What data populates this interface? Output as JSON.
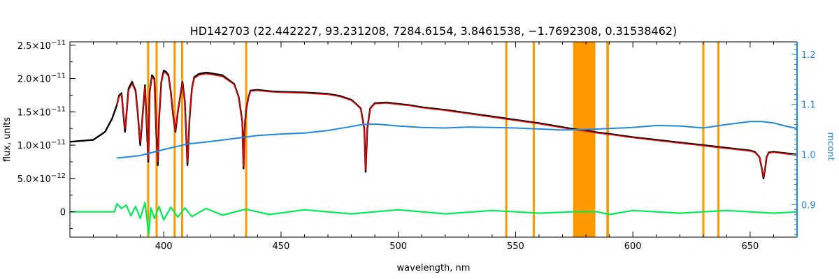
{
  "chart_data": {
    "type": "line",
    "title": "HD142703    (22.442227, 93.231208, 7284.6154, 3.8461538, −1.7692308, 0.31538462)",
    "xlabel": "wavelength, nm",
    "ylabel": "flux, units",
    "y2label": "mcont",
    "xlim": [
      360,
      670
    ],
    "ylim": [
      -3.8e-12,
      2.55e-11
    ],
    "y2lim": [
      0.835,
      1.225
    ],
    "grid": false,
    "x_ticks": [
      {
        "v": 400,
        "label": "400"
      },
      {
        "v": 450,
        "label": "450"
      },
      {
        "v": 500,
        "label": "500"
      },
      {
        "v": 550,
        "label": "550"
      },
      {
        "v": 600,
        "label": "600"
      },
      {
        "v": 650,
        "label": "650"
      }
    ],
    "y_ticks": [
      {
        "v": 0,
        "mant": "0",
        "exp": ""
      },
      {
        "v": 5e-12,
        "mant": "5.0×10",
        "exp": "−12"
      },
      {
        "v": 1e-11,
        "mant": "1.0×10",
        "exp": "−11"
      },
      {
        "v": 1.5e-11,
        "mant": "1.5×10",
        "exp": "−11"
      },
      {
        "v": 2e-11,
        "mant": "2.0×10",
        "exp": "−11"
      },
      {
        "v": 2.5e-11,
        "mant": "2.5×10",
        "exp": "−11"
      }
    ],
    "y2_ticks": [
      {
        "v": 0.9,
        "label": "0.9"
      },
      {
        "v": 1.0,
        "label": "1.0"
      },
      {
        "v": 1.1,
        "label": "1.1"
      },
      {
        "v": 1.2,
        "label": "1.2"
      }
    ],
    "masked_regions": [
      [
        392.9,
        393.8
      ],
      [
        396.5,
        397.3
      ],
      [
        404.2,
        405.0
      ],
      [
        407.4,
        408.2
      ],
      [
        434.7,
        435.5
      ],
      [
        545.6,
        546.5
      ],
      [
        557.3,
        558.2
      ],
      [
        574.5,
        584.0
      ],
      [
        588.7,
        589.8
      ],
      [
        629.6,
        630.5
      ],
      [
        636.0,
        636.9
      ]
    ],
    "colors": {
      "observed": "#000000",
      "model": "#ff0000",
      "mcont": "#1e88e5",
      "residuals": "#00ee55",
      "mask": "#ff9900"
    },
    "series": [
      {
        "role": "observed",
        "x": [
          360,
          370,
          375,
          378,
          380,
          381,
          382,
          383.5,
          385,
          386.5,
          388,
          389,
          390,
          391,
          392,
          393.4,
          394,
          395,
          396,
          396.8,
          397.5,
          398,
          399,
          400,
          401,
          402,
          403,
          404,
          405,
          406,
          408,
          409,
          410.1,
          411,
          412,
          413,
          415,
          418,
          420,
          425,
          430,
          432,
          433.5,
          434.0,
          434.4,
          435,
          436,
          437,
          440,
          445,
          450,
          460,
          470,
          475,
          480,
          482,
          484,
          485.5,
          486.1,
          486.8,
          488,
          490,
          495,
          500,
          505,
          510,
          520,
          530,
          540,
          550,
          560,
          570,
          575,
          580,
          585,
          590,
          600,
          610,
          620,
          630,
          640,
          650,
          652,
          654,
          655,
          655.7,
          656.4,
          657,
          658,
          660,
          665,
          670
        ],
        "y": [
          1.05e-11,
          1.08e-11,
          1.2e-11,
          1.4e-11,
          1.6e-11,
          1.75e-11,
          1.78e-11,
          1.2e-11,
          1.85e-11,
          1.95e-11,
          1.82e-11,
          1.45e-11,
          1e-11,
          1.45e-11,
          1.9e-11,
          7.5e-12,
          1.8e-11,
          2.05e-11,
          2e-11,
          1.2e-11,
          7e-12,
          1.4e-11,
          1.95e-11,
          2.12e-11,
          2.1e-11,
          2.05e-11,
          1.8e-11,
          1.45e-11,
          1.2e-11,
          1.5e-11,
          1.95e-11,
          1.65e-11,
          7e-12,
          1.4e-11,
          1.85e-11,
          2.02e-11,
          2.07e-11,
          2.09e-11,
          2.08e-11,
          2.05e-11,
          1.92e-11,
          1.72e-11,
          1.35e-11,
          6.5e-12,
          1.2e-11,
          1.5e-11,
          1.7e-11,
          1.82e-11,
          1.83e-11,
          1.81e-11,
          1.8e-11,
          1.79e-11,
          1.77e-11,
          1.74e-11,
          1.68e-11,
          1.62e-11,
          1.55e-11,
          1.25e-11,
          6e-12,
          1.25e-11,
          1.55e-11,
          1.63e-11,
          1.64e-11,
          1.62e-11,
          1.6e-11,
          1.57e-11,
          1.53e-11,
          1.48e-11,
          1.43e-11,
          1.38e-11,
          1.33e-11,
          1.27e-11,
          1.24e-11,
          1.22e-11,
          1.19e-11,
          1.17e-11,
          1.12e-11,
          1.08e-11,
          1.04e-11,
          1e-11,
          9.6e-12,
          9.2e-12,
          9e-12,
          8.2e-12,
          6.5e-12,
          5e-12,
          6.5e-12,
          8.2e-12,
          8.9e-12,
          9e-12,
          8.8e-12,
          8.6e-12
        ]
      },
      {
        "role": "model",
        "x": [
          380,
          381,
          382,
          383.5,
          385,
          386.5,
          388,
          389,
          390,
          391,
          392,
          393.4,
          394,
          395,
          396,
          396.8,
          397.5,
          398,
          399,
          400,
          401,
          402,
          403,
          404,
          405,
          406,
          408,
          409,
          410.1,
          411,
          412,
          413,
          415,
          418,
          420,
          425,
          430,
          432,
          433.5,
          434.0,
          434.4,
          435,
          436,
          437,
          440,
          445,
          450,
          460,
          470,
          475,
          480,
          482,
          484,
          485.5,
          486.1,
          486.8,
          488,
          490,
          495,
          500,
          505,
          510,
          520,
          530,
          540,
          550,
          560,
          570,
          575,
          580,
          585,
          590,
          600,
          610,
          620,
          630,
          640,
          650,
          652,
          654,
          655,
          655.7,
          656.4,
          657,
          658,
          660,
          665,
          670
        ],
        "y": [
          1.6e-11,
          1.73e-11,
          1.76e-11,
          1.25e-11,
          1.82e-11,
          1.92e-11,
          1.8e-11,
          1.45e-11,
          1.05e-11,
          1.45e-11,
          1.88e-11,
          7.8e-12,
          1.8e-11,
          2.02e-11,
          1.98e-11,
          1.22e-11,
          7.5e-12,
          1.42e-11,
          1.93e-11,
          2.09e-11,
          2.08e-11,
          2.03e-11,
          1.8e-11,
          1.46e-11,
          1.22e-11,
          1.52e-11,
          1.93e-11,
          1.64e-11,
          7.5e-12,
          1.42e-11,
          1.84e-11,
          2e-11,
          2.05e-11,
          2.07e-11,
          2.06e-11,
          2.03e-11,
          1.91e-11,
          1.71e-11,
          1.35e-11,
          6.8e-12,
          1.22e-11,
          1.5e-11,
          1.7e-11,
          1.81e-11,
          1.82e-11,
          1.8e-11,
          1.79e-11,
          1.78e-11,
          1.76e-11,
          1.73e-11,
          1.67e-11,
          1.61e-11,
          1.54e-11,
          1.25e-11,
          6.3e-12,
          1.25e-11,
          1.54e-11,
          1.62e-11,
          1.63e-11,
          1.61e-11,
          1.59e-11,
          1.56e-11,
          1.52e-11,
          1.47e-11,
          1.42e-11,
          1.37e-11,
          1.32e-11,
          1.26e-11,
          1.23e-11,
          1.21e-11,
          1.18e-11,
          1.16e-11,
          1.11e-11,
          1.07e-11,
          1.03e-11,
          9.9e-12,
          9.5e-12,
          9.1e-12,
          8.9e-12,
          8.2e-12,
          6.6e-12,
          5.2e-12,
          6.6e-12,
          8.2e-12,
          8.8e-12,
          8.9e-12,
          8.7e-12,
          8.5e-12
        ]
      },
      {
        "role": "mcont",
        "x": [
          380,
          390,
          400,
          410,
          420,
          430,
          440,
          450,
          460,
          470,
          480,
          485,
          490,
          500,
          510,
          520,
          530,
          540,
          550,
          560,
          570,
          580,
          590,
          600,
          610,
          620,
          630,
          640,
          650,
          655,
          660,
          665,
          670
        ],
        "y": [
          0.993,
          0.998,
          1.01,
          1.021,
          1.026,
          1.032,
          1.038,
          1.041,
          1.043,
          1.048,
          1.056,
          1.06,
          1.061,
          1.057,
          1.054,
          1.053,
          1.055,
          1.054,
          1.053,
          1.051,
          1.049,
          1.05,
          1.052,
          1.054,
          1.058,
          1.057,
          1.053,
          1.06,
          1.066,
          1.066,
          1.063,
          1.057,
          1.052
        ]
      },
      {
        "role": "residuals",
        "x": [
          360,
          370,
          379,
          380,
          382,
          384,
          386,
          388,
          390,
          392,
          393,
          393.6,
          394.5,
          396,
          398,
          400,
          403,
          406,
          409,
          412,
          418,
          425,
          435,
          445,
          460,
          480,
          500,
          520,
          540,
          560,
          574,
          585,
          590,
          600,
          620,
          640,
          660,
          670
        ],
        "y": [
          0,
          0,
          0,
          1.2e-12,
          5e-13,
          1e-12,
          -6e-13,
          8e-13,
          -1e-12,
          1.4e-12,
          -1.6e-12,
          -3.4e-12,
          6e-13,
          -1e-12,
          8e-13,
          -1.2e-12,
          7e-13,
          -8e-13,
          6e-13,
          -7e-13,
          5e-13,
          -5e-13,
          4e-13,
          -4e-13,
          3e-13,
          -3e-13,
          3e-13,
          -3e-13,
          2e-13,
          -2e-13,
          0,
          0,
          -4e-13,
          2e-13,
          -2e-13,
          2e-13,
          -2e-13,
          0
        ]
      }
    ]
  }
}
